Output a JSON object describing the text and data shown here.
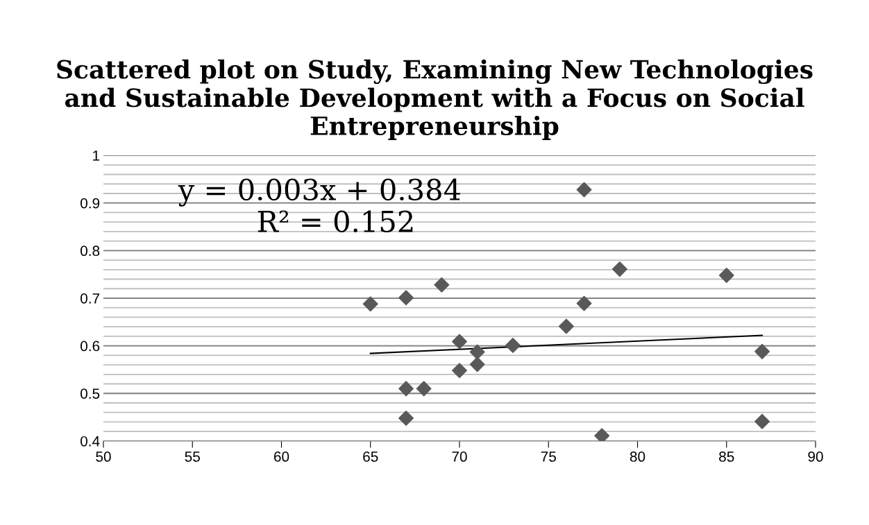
{
  "chart_data": {
    "type": "scatter",
    "title": "Scattered plot on Study, Examining New Technologies and Sustainable Development with a Focus on Social Entrepreneurship",
    "x": [
      65,
      67,
      69,
      67,
      68,
      67,
      70,
      70,
      71,
      71,
      73,
      76,
      77,
      77,
      79,
      85,
      87,
      87,
      78
    ],
    "series": [
      {
        "color": "#595959",
        "marker": "diamond",
        "values": [
          0.688,
          0.701,
          0.728,
          0.51,
          0.51,
          0.448,
          0.609,
          0.548,
          0.587,
          0.561,
          0.601,
          0.641,
          0.928,
          0.689,
          0.761,
          0.748,
          0.588,
          0.441,
          0.411
        ]
      },
      {
        "type": "line",
        "color": "#000000",
        "x": [
          65,
          87
        ],
        "values": [
          0.584,
          0.622
        ]
      }
    ],
    "annotations": [
      "y = 0.003x + 0.384",
      "R² = 0.152"
    ],
    "xlim": [
      50,
      90
    ],
    "xticks": [
      50,
      55,
      60,
      65,
      70,
      75,
      80,
      85,
      90
    ],
    "ylim": [
      0.4,
      1
    ],
    "yticks": [
      0.4,
      0.5,
      0.6,
      0.7,
      0.8,
      0.9,
      1
    ],
    "grid": "y",
    "legend": false
  }
}
